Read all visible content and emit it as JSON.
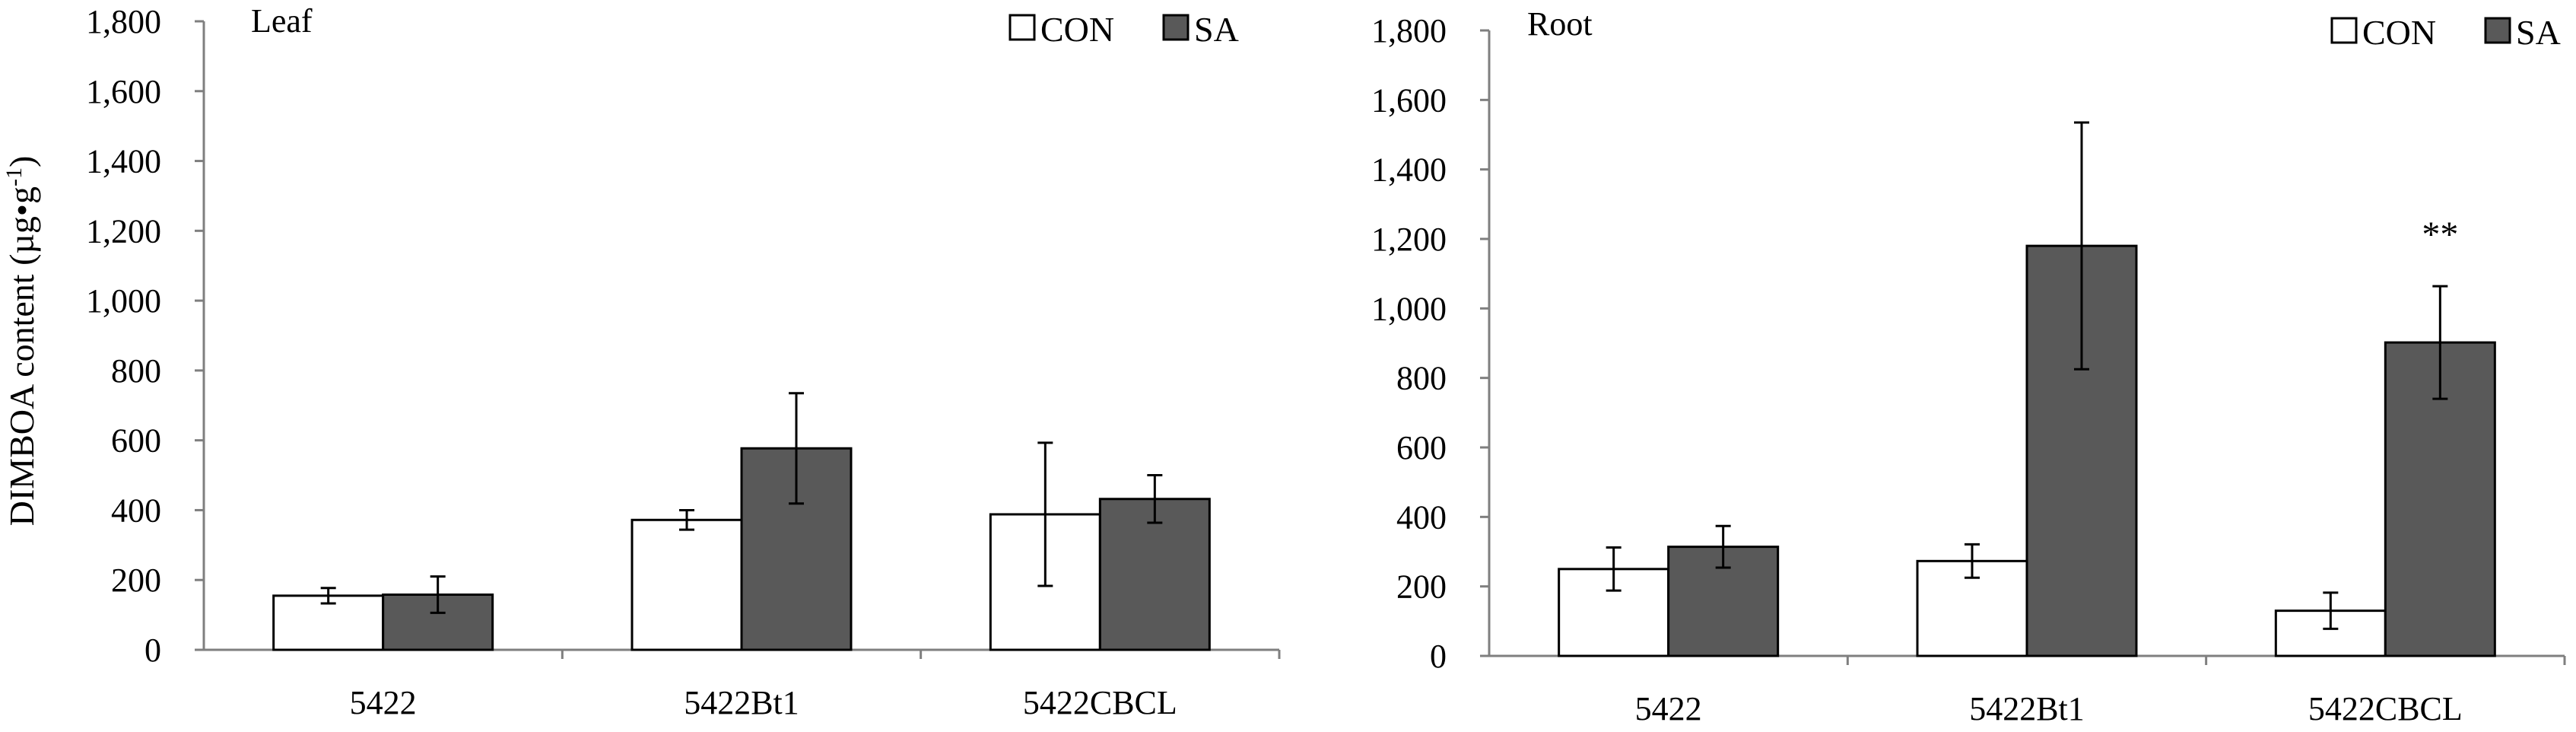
{
  "chart_data": [
    {
      "type": "bar",
      "panel_title": "Leaf",
      "ylabel": "DIMBOA content (µg•g",
      "ylabel_superscript": "-1",
      "ylabel_suffix": ")",
      "ylim": [
        0,
        1800
      ],
      "yticks": [
        0,
        200,
        400,
        600,
        800,
        1000,
        1200,
        1400,
        1600,
        1800
      ],
      "ytick_labels": [
        "0",
        "200",
        "400",
        "600",
        "800",
        "1,000",
        "1,200",
        "1,400",
        "1,600",
        "1,800"
      ],
      "categories": [
        "5422",
        "5422Bt1",
        "5422CBCL"
      ],
      "series": [
        {
          "name": "CON",
          "color": "#ffffff",
          "values": [
            155,
            372,
            388
          ],
          "errors": [
            22,
            28,
            205
          ]
        },
        {
          "name": "SA",
          "color": "#595959",
          "values": [
            158,
            577,
            432
          ],
          "errors": [
            52,
            158,
            68
          ]
        }
      ],
      "annotations": [],
      "legend_position": "top-right"
    },
    {
      "type": "bar",
      "panel_title": "Root",
      "ylim": [
        0,
        1800
      ],
      "yticks": [
        0,
        200,
        400,
        600,
        800,
        1000,
        1200,
        1400,
        1600,
        1800
      ],
      "ytick_labels": [
        "0",
        "200",
        "400",
        "600",
        "800",
        "1,000",
        "1,200",
        "1,400",
        "1,600",
        "1,800"
      ],
      "categories": [
        "5422",
        "5422Bt1",
        "5422CBCL"
      ],
      "series": [
        {
          "name": "CON",
          "color": "#ffffff",
          "values": [
            250,
            273,
            130
          ],
          "errors": [
            62,
            48,
            52
          ]
        },
        {
          "name": "SA",
          "color": "#595959",
          "values": [
            314,
            1180,
            902
          ],
          "errors": [
            60,
            355,
            162
          ]
        }
      ],
      "annotations": [
        {
          "category_index": 2,
          "series": "SA",
          "text": "**"
        }
      ],
      "legend_position": "top-right"
    }
  ]
}
